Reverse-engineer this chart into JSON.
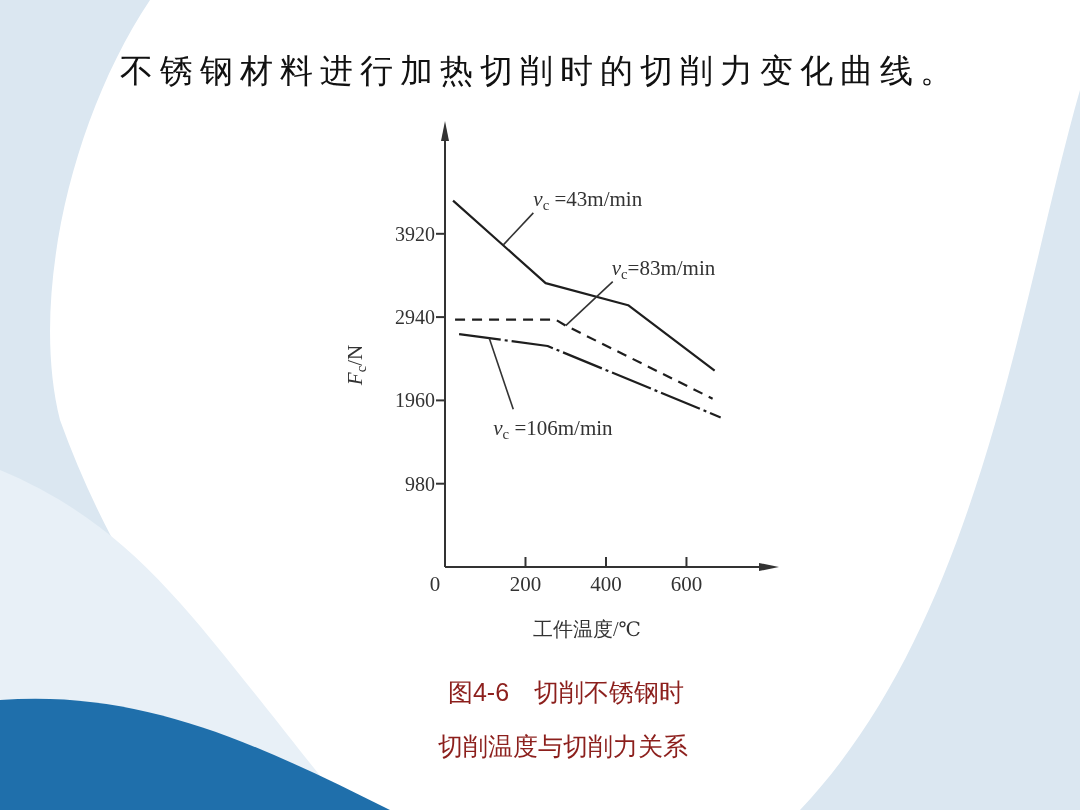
{
  "chart_data": {
    "type": "line",
    "title": "不锈钢材料进行加热切削时的切削力变化曲线。",
    "xlabel": "工件温度/℃",
    "ylabel": "F$_{c}$/N",
    "annotations": [
      {
        "text": "v$_{c}$ =43m/min",
        "x": 145,
        "y": 3790
      },
      {
        "text": "v$_{c}$=83m/min",
        "x": 300,
        "y": 2840
      },
      {
        "text": "v$_{c}$ =106m/min",
        "x": 110,
        "y": 2690
      },
      "图4-6　切削不锈钢时",
      "切削温度与切削力关系"
    ],
    "series": [
      {
        "color": "#1e1e1e",
        "line_style": "solid",
        "x": [
          20,
          250,
          455,
          670
        ],
        "values": [
          4310,
          3340,
          3080,
          2310
        ]
      },
      {
        "color": "#1e1e1e",
        "line_style": "dashed",
        "x": [
          25,
          275,
          300,
          665
        ],
        "values": [
          2910,
          2910,
          2840,
          1980
        ]
      },
      {
        "color": "#1e1e1e",
        "line_style": "dashdot",
        "x": [
          35,
          255,
          685
        ],
        "values": [
          2740,
          2600,
          1760
        ]
      }
    ],
    "xlim": [
      0,
      820
    ],
    "ylim": [
      0,
      5200
    ],
    "xticks": [
      0,
      200,
      400,
      600
    ],
    "yticks": [
      980,
      1960,
      2940,
      3920
    ]
  }
}
